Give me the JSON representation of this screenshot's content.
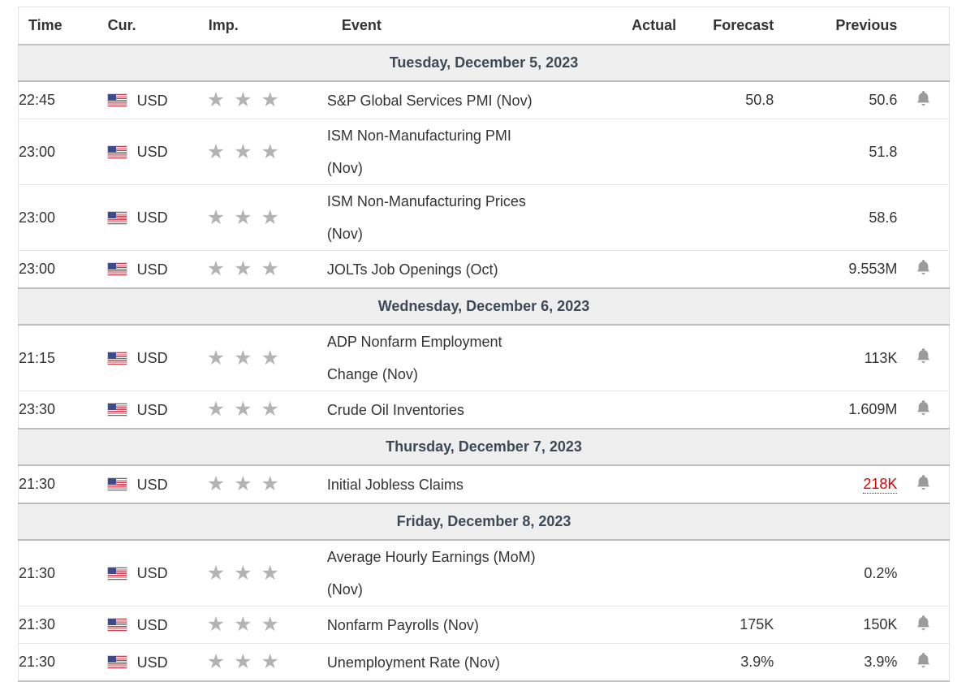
{
  "table": {
    "columns": {
      "time": "Time",
      "currency": "Cur.",
      "importance": "Imp.",
      "event": "Event",
      "actual": "Actual",
      "forecast": "Forecast",
      "previous": "Previous"
    },
    "colors": {
      "date_text": "#3d4956",
      "date_bg": "#efefef",
      "alert_red": "#e00000",
      "star_gray": "#b3b3b3",
      "bell_gray": "#9b9b9b",
      "flag_red": "#cb4150",
      "flag_blue": "#3f4a8c"
    },
    "icons": {
      "importance": "star-icon",
      "notification": "bell-icon",
      "currency_flag": "us-flag-icon"
    },
    "sections": [
      {
        "date_label": "Tuesday, December 5, 2023",
        "rows": [
          {
            "time": "22:45",
            "currency": "USD",
            "importance": 3,
            "event_lines": [
              "S&P Global Services PMI (Nov)"
            ],
            "actual": "",
            "forecast": "50.8",
            "previous": "50.6",
            "previous_alert": false,
            "bell": true
          },
          {
            "time": "23:00",
            "currency": "USD",
            "importance": 3,
            "event_lines": [
              "ISM Non-Manufacturing PMI",
              "(Nov)"
            ],
            "actual": "",
            "forecast": "",
            "previous": "51.8",
            "previous_alert": false,
            "bell": false
          },
          {
            "time": "23:00",
            "currency": "USD",
            "importance": 3,
            "event_lines": [
              "ISM Non-Manufacturing Prices",
              "(Nov)"
            ],
            "actual": "",
            "forecast": "",
            "previous": "58.6",
            "previous_alert": false,
            "bell": false
          },
          {
            "time": "23:00",
            "currency": "USD",
            "importance": 3,
            "event_lines": [
              "JOLTs Job Openings (Oct)"
            ],
            "actual": "",
            "forecast": "",
            "previous": "9.553M",
            "previous_alert": false,
            "bell": true
          }
        ]
      },
      {
        "date_label": "Wednesday, December 6, 2023",
        "rows": [
          {
            "time": "21:15",
            "currency": "USD",
            "importance": 3,
            "event_lines": [
              "ADP Nonfarm Employment",
              "Change (Nov)"
            ],
            "actual": "",
            "forecast": "",
            "previous": "113K",
            "previous_alert": false,
            "bell": true
          },
          {
            "time": "23:30",
            "currency": "USD",
            "importance": 3,
            "event_lines": [
              "Crude Oil Inventories"
            ],
            "actual": "",
            "forecast": "",
            "previous": "1.609M",
            "previous_alert": false,
            "bell": true
          }
        ]
      },
      {
        "date_label": "Thursday, December 7, 2023",
        "rows": [
          {
            "time": "21:30",
            "currency": "USD",
            "importance": 3,
            "event_lines": [
              "Initial Jobless Claims"
            ],
            "actual": "",
            "forecast": "",
            "previous": "218K",
            "previous_alert": true,
            "bell": true
          }
        ]
      },
      {
        "date_label": "Friday, December 8, 2023",
        "rows": [
          {
            "time": "21:30",
            "currency": "USD",
            "importance": 3,
            "event_lines": [
              "Average Hourly Earnings (MoM)",
              "(Nov)"
            ],
            "actual": "",
            "forecast": "",
            "previous": "0.2%",
            "previous_alert": false,
            "bell": false
          },
          {
            "time": "21:30",
            "currency": "USD",
            "importance": 3,
            "event_lines": [
              "Nonfarm Payrolls (Nov)"
            ],
            "actual": "",
            "forecast": "175K",
            "previous": "150K",
            "previous_alert": false,
            "bell": true
          },
          {
            "time": "21:30",
            "currency": "USD",
            "importance": 3,
            "event_lines": [
              "Unemployment Rate (Nov)"
            ],
            "actual": "",
            "forecast": "3.9%",
            "previous": "3.9%",
            "previous_alert": false,
            "bell": true
          }
        ]
      }
    ]
  }
}
